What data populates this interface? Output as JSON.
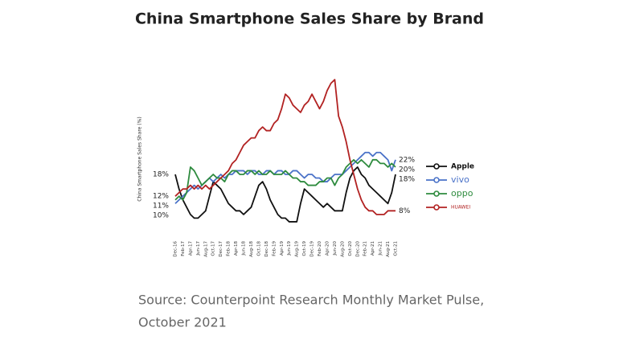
{
  "chart_data": {
    "type": "line",
    "title": "China Smartphone Sales Share by Brand",
    "y_label": "China Smartphone Sales Share (%)",
    "source": [
      "Source: Counterpoint Research Monthly Market Pulse,",
      "October 2021"
    ],
    "categories": [
      "Dec-16",
      null,
      "Feb-17",
      null,
      "Apr-17",
      null,
      "Jun-17",
      null,
      "Aug-17",
      null,
      "Oct-17",
      null,
      "Dec-17",
      null,
      "Feb-18",
      null,
      "Apr-18",
      null,
      "Jun-18",
      null,
      "Aug-18",
      null,
      "Oct-18",
      null,
      "Dec-18",
      null,
      "Feb-19",
      null,
      "Apr-19",
      null,
      "Jun-19",
      null,
      "Aug-19",
      null,
      "Oct-19",
      null,
      "Dec-19",
      null,
      "Feb-20",
      null,
      "Apr-20",
      null,
      "Jun-20",
      null,
      "Aug-20",
      null,
      "Oct-20",
      null,
      "Dec-20",
      null,
      "Feb-21",
      null,
      "Apr-21",
      null,
      "Jun-21",
      null,
      "Aug-21",
      null,
      "Oct-21"
    ],
    "ylim": [
      3,
      46
    ],
    "series": [
      {
        "name": "Apple",
        "color": "#111111",
        "start_label": "18%",
        "end_label": "18%",
        "values": [
          18,
          14,
          11,
          9,
          7,
          6,
          6,
          7,
          8,
          12,
          16,
          15,
          14,
          12,
          10,
          9,
          8,
          8,
          7,
          8,
          9,
          12,
          15,
          16,
          14,
          11,
          9,
          7,
          6,
          6,
          5,
          5,
          5,
          10,
          14,
          13,
          12,
          11,
          10,
          9,
          10,
          9,
          8,
          8,
          8,
          13,
          17,
          19,
          20,
          18,
          17,
          15,
          14,
          13,
          12,
          11,
          10,
          13,
          18
        ]
      },
      {
        "name": "vivo",
        "color": "#4a72c8",
        "start_label": "10%",
        "end_label": "22%",
        "values": [
          10,
          11,
          12,
          13,
          14,
          15,
          14,
          15,
          16,
          17,
          16,
          17,
          18,
          17,
          18,
          18,
          19,
          19,
          19,
          18,
          19,
          19,
          18,
          18,
          19,
          19,
          18,
          19,
          19,
          18,
          18,
          19,
          19,
          18,
          17,
          18,
          18,
          17,
          17,
          16,
          16,
          17,
          18,
          18,
          18,
          19,
          20,
          21,
          22,
          23,
          24,
          24,
          23,
          24,
          24,
          23,
          22,
          19,
          22
        ]
      },
      {
        "name": "oppo",
        "color": "#2e8b3e",
        "start_label": "11%",
        "end_label": "20%",
        "values": [
          11,
          12,
          11,
          13,
          20,
          19,
          17,
          15,
          16,
          17,
          18,
          17,
          17,
          16,
          18,
          19,
          19,
          18,
          18,
          19,
          19,
          18,
          19,
          18,
          18,
          19,
          18,
          18,
          18,
          19,
          18,
          17,
          17,
          16,
          16,
          15,
          15,
          15,
          16,
          16,
          17,
          17,
          15,
          17,
          18,
          20,
          21,
          22,
          21,
          22,
          21,
          20,
          22,
          22,
          21,
          21,
          20,
          21,
          20
        ]
      },
      {
        "name": "HUAWEI",
        "color": "#b22222",
        "start_label": "12%",
        "end_label": "8%",
        "values": [
          12,
          13,
          14,
          14,
          15,
          14,
          15,
          14,
          15,
          14,
          15,
          16,
          17,
          18,
          19,
          21,
          22,
          24,
          26,
          27,
          28,
          28,
          30,
          31,
          30,
          30,
          32,
          33,
          36,
          40,
          39,
          37,
          36,
          35,
          37,
          38,
          40,
          38,
          36,
          38,
          41,
          43,
          44,
          34,
          31,
          27,
          22,
          18,
          14,
          11,
          9,
          8,
          8,
          7,
          7,
          7,
          8,
          8,
          8
        ]
      }
    ]
  }
}
